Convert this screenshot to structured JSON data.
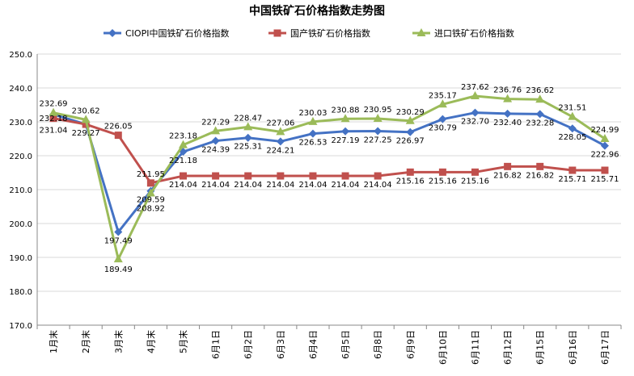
{
  "chart_data": {
    "type": "line",
    "title": "中国铁矿石价格指数走势图",
    "xlabel": "",
    "ylabel": "",
    "ylim": [
      170,
      250
    ],
    "yticks": [
      "170.0",
      "180.0",
      "190.0",
      "200.0",
      "210.0",
      "220.0",
      "230.0",
      "240.0",
      "250.0"
    ],
    "grid": true,
    "legend_position": "top",
    "categories": [
      "1月末",
      "2月末",
      "3月末",
      "4月末",
      "5月末",
      "6月1日",
      "6月2日",
      "6月3日",
      "6月4日",
      "6月5日",
      "6月8日",
      "6月9日",
      "6月10日",
      "6月11日",
      "6月12日",
      "6月15日",
      "6月16日",
      "6月17日"
    ],
    "series": [
      {
        "name": "CIOPI中国铁矿石价格指数",
        "color": "#4472C4",
        "marker": "diamond",
        "values": [
          232.18,
          229.27,
          197.49,
          209.59,
          221.18,
          224.39,
          225.31,
          224.21,
          226.53,
          227.19,
          227.25,
          226.97,
          230.79,
          232.7,
          232.4,
          232.28,
          228.05,
          222.96
        ],
        "labels": [
          "232.18",
          "229.27",
          "197.49",
          "209.59",
          "221.18",
          "224.39",
          "225.31",
          "224.21",
          "226.53",
          "227.19",
          "227.25",
          "226.97",
          "230.79",
          "232.70",
          "232.40",
          "232.28",
          "228.05",
          "222.96"
        ]
      },
      {
        "name": "国产铁矿石价格指数",
        "color": "#C0504D",
        "marker": "square",
        "values": [
          231.04,
          229.27,
          226.05,
          211.95,
          214.04,
          214.04,
          214.04,
          214.04,
          214.04,
          214.04,
          214.04,
          215.16,
          215.16,
          215.16,
          216.82,
          216.82,
          215.71,
          215.71
        ],
        "labels": [
          "231.04",
          "",
          "226.05",
          "211.95",
          "214.04",
          "214.04",
          "214.04",
          "214.04",
          "214.04",
          "214.04",
          "214.04",
          "215.16",
          "215.16",
          "215.16",
          "216.82",
          "216.82",
          "215.71",
          "215.71"
        ]
      },
      {
        "name": "进口铁矿石价格指数",
        "color": "#9BBB59",
        "marker": "triangle",
        "values": [
          232.69,
          230.62,
          189.49,
          208.92,
          223.18,
          227.29,
          228.47,
          227.06,
          230.03,
          230.88,
          230.95,
          230.29,
          235.17,
          237.62,
          236.76,
          236.62,
          231.51,
          224.99
        ],
        "labels": [
          "232.69",
          "230.62",
          "189.49",
          "208.92",
          "223.18",
          "227.29",
          "228.47",
          "227.06",
          "230.03",
          "230.88",
          "230.95",
          "230.29",
          "235.17",
          "237.62",
          "236.76",
          "236.62",
          "231.51",
          "224.99"
        ]
      }
    ]
  }
}
